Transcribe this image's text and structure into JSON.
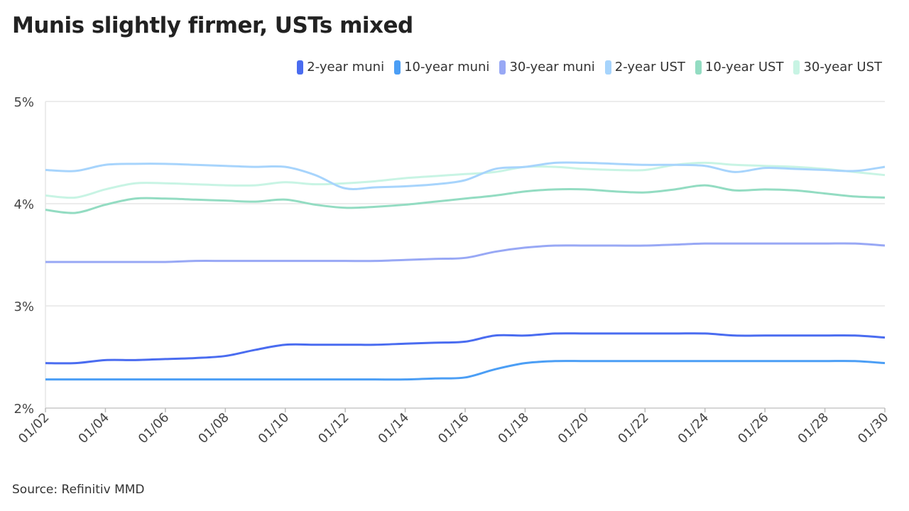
{
  "title": "Munis slightly firmer, USTs mixed",
  "source": "Source: Refinitiv MMD",
  "chart_data": {
    "type": "line",
    "title": "Munis slightly firmer, USTs mixed",
    "xlabel": "",
    "ylabel": "",
    "ylim": [
      2,
      5
    ],
    "y_ticks": [
      "2%",
      "3%",
      "4%",
      "5%"
    ],
    "y_tick_values": [
      2,
      3,
      4,
      5
    ],
    "grid": "horizontal",
    "legend": "top-right",
    "x": [
      "01/02",
      "01/03",
      "01/04",
      "01/05",
      "01/06",
      "01/07",
      "01/08",
      "01/09",
      "01/10",
      "01/11",
      "01/12",
      "01/13",
      "01/14",
      "01/15",
      "01/16",
      "01/17",
      "01/18",
      "01/19",
      "01/20",
      "01/21",
      "01/22",
      "01/23",
      "01/24",
      "01/25",
      "01/26",
      "01/27",
      "01/28",
      "01/29",
      "01/30"
    ],
    "x_ticks": [
      "01/02",
      "01/04",
      "01/06",
      "01/08",
      "01/10",
      "01/12",
      "01/14",
      "01/16",
      "01/18",
      "01/20",
      "01/22",
      "01/24",
      "01/26",
      "01/28",
      "01/30"
    ],
    "series": [
      {
        "name": "2-year muni",
        "color": "#4a6cf0",
        "values": [
          2.44,
          2.44,
          2.47,
          2.47,
          2.48,
          2.49,
          2.51,
          2.57,
          2.62,
          2.62,
          2.62,
          2.62,
          2.63,
          2.64,
          2.65,
          2.71,
          2.71,
          2.73,
          2.73,
          2.73,
          2.73,
          2.73,
          2.73,
          2.71,
          2.71,
          2.71,
          2.71,
          2.71,
          2.69
        ]
      },
      {
        "name": "10-year muni",
        "color": "#4b9ef5",
        "values": [
          2.28,
          2.28,
          2.28,
          2.28,
          2.28,
          2.28,
          2.28,
          2.28,
          2.28,
          2.28,
          2.28,
          2.28,
          2.28,
          2.29,
          2.3,
          2.38,
          2.44,
          2.46,
          2.46,
          2.46,
          2.46,
          2.46,
          2.46,
          2.46,
          2.46,
          2.46,
          2.46,
          2.46,
          2.44
        ]
      },
      {
        "name": "30-year muni",
        "color": "#98a8f5",
        "values": [
          3.43,
          3.43,
          3.43,
          3.43,
          3.43,
          3.44,
          3.44,
          3.44,
          3.44,
          3.44,
          3.44,
          3.44,
          3.45,
          3.46,
          3.47,
          3.53,
          3.57,
          3.59,
          3.59,
          3.59,
          3.59,
          3.6,
          3.61,
          3.61,
          3.61,
          3.61,
          3.61,
          3.61,
          3.59
        ]
      },
      {
        "name": "2-year UST",
        "color": "#a7d4fc",
        "values": [
          4.33,
          4.32,
          4.38,
          4.39,
          4.39,
          4.38,
          4.37,
          4.36,
          4.36,
          4.28,
          4.15,
          4.16,
          4.17,
          4.19,
          4.23,
          4.34,
          4.36,
          4.4,
          4.4,
          4.39,
          4.38,
          4.38,
          4.37,
          4.31,
          4.35,
          4.34,
          4.33,
          4.32,
          4.36
        ]
      },
      {
        "name": "10-year UST",
        "color": "#93dcc2",
        "values": [
          3.94,
          3.91,
          3.99,
          4.05,
          4.05,
          4.04,
          4.03,
          4.02,
          4.04,
          3.99,
          3.96,
          3.97,
          3.99,
          4.02,
          4.05,
          4.08,
          4.12,
          4.14,
          4.14,
          4.12,
          4.11,
          4.14,
          4.18,
          4.13,
          4.14,
          4.13,
          4.1,
          4.07,
          4.06
        ]
      },
      {
        "name": "30-year UST",
        "color": "#c8f4e4",
        "values": [
          4.08,
          4.06,
          4.14,
          4.2,
          4.2,
          4.19,
          4.18,
          4.18,
          4.21,
          4.19,
          4.2,
          4.22,
          4.25,
          4.27,
          4.29,
          4.31,
          4.36,
          4.36,
          4.34,
          4.33,
          4.33,
          4.38,
          4.4,
          4.38,
          4.37,
          4.36,
          4.34,
          4.31,
          4.28
        ]
      }
    ]
  }
}
